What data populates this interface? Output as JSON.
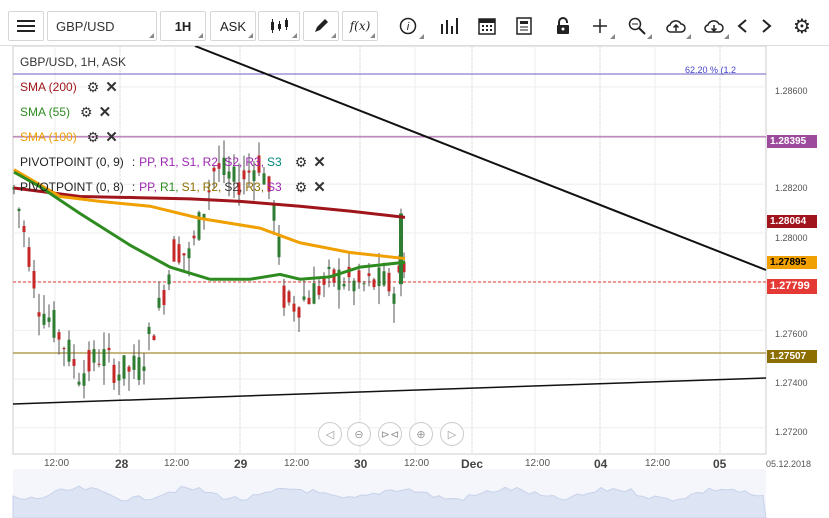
{
  "toolbar": {
    "menu_icon": "hamburger-icon",
    "symbol": "GBP/USD",
    "timeframe": "1H",
    "price_type": "ASK",
    "icons": [
      "candlestick-icon",
      "pencil-icon",
      "function-icon",
      "info-icon",
      "bar-chart-icon",
      "calendar-icon",
      "document-icon",
      "lock-icon",
      "crosshair-icon",
      "zoom-icon",
      "cloud-upload-icon",
      "cloud-download-icon",
      "chevron-left-icon",
      "chevron-right-icon",
      "gear-icon"
    ],
    "function_label": "f(x)"
  },
  "chart": {
    "title": "GBP/USD, 1H, ASK",
    "fib_label": "62.20 % (1.2",
    "indicators": [
      {
        "label": "SMA (200)",
        "color": "#a0151b"
      },
      {
        "label": "SMA (55)",
        "color": "#2e8b20"
      },
      {
        "label": "SMA (100)",
        "color": "#f0a000"
      }
    ],
    "pivots": [
      {
        "name": "PIVOTPOINT (0, 9)",
        "sep": ":",
        "levels": [
          "PP,",
          "R1,",
          "S1,",
          "R2,",
          "S2,",
          "R3,",
          "S3"
        ],
        "colors": [
          "#9c27b0",
          "#9c27b0",
          "#9c27b0",
          "#9c27b0",
          "#9c27b0",
          "#9c27b0",
          "#00897b"
        ]
      },
      {
        "name": "PIVOTPOINT (0, 8)",
        "sep": ":",
        "levels": [
          "PP,",
          "R1,",
          "S1,",
          "R2,",
          "S2,",
          "R3,",
          "S3"
        ],
        "colors": [
          "#9c27b0",
          "#2e8b20",
          "#8d6e00",
          "#8d6e00",
          "#333333",
          "#8d6e00",
          "#9c27b0"
        ]
      }
    ],
    "price_axis": [
      "1.28600",
      "1.28200",
      "1.28000",
      "1.27600",
      "1.27400",
      "1.27200"
    ],
    "price_tags": [
      {
        "value": "1.28395",
        "color": "#9c4a9c"
      },
      {
        "value": "1.28064",
        "color": "#a0151b"
      },
      {
        "value": "1.27895",
        "color": "#f0a000",
        "text_color": "#000"
      },
      {
        "value": "1.27799",
        "color": "#e53935"
      },
      {
        "value": "1.27507",
        "color": "#8d6e00"
      }
    ],
    "time_axis": [
      "12:00",
      "28",
      "12:00",
      "29",
      "12:00",
      "30",
      "12:00",
      "Dec",
      "12:00",
      "04",
      "12:00",
      "05",
      "05.12.2018"
    ],
    "nav_buttons": [
      "prev-icon",
      "zoom-out-icon",
      "fit-icon",
      "zoom-in-icon",
      "next-icon"
    ]
  }
}
